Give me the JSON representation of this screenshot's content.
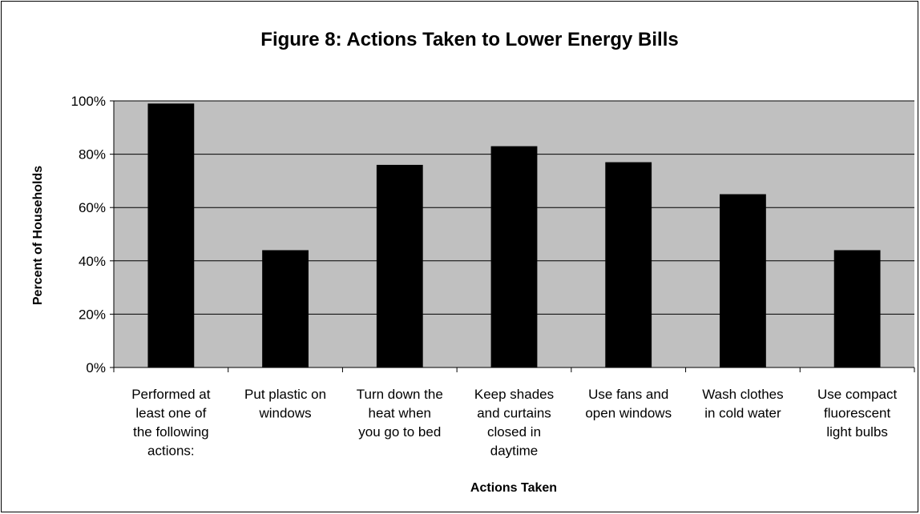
{
  "chart_data": {
    "type": "bar",
    "title": "Figure 8: Actions Taken to Lower Energy Bills",
    "xlabel": "Actions Taken",
    "ylabel": "Percent of Households",
    "ylim": [
      0,
      100
    ],
    "yticks": [
      "0%",
      "20%",
      "40%",
      "60%",
      "80%",
      "100%"
    ],
    "ytick_values": [
      0,
      20,
      40,
      60,
      80,
      100
    ],
    "grid": true,
    "legend": "none",
    "categories": [
      [
        "Performed at",
        "least one of",
        "the following",
        "actions:"
      ],
      [
        "Put plastic on",
        "windows"
      ],
      [
        "Turn down the",
        "heat when",
        "you go to bed"
      ],
      [
        "Keep shades",
        "and curtains",
        "closed in",
        "daytime"
      ],
      [
        "Use fans and",
        "open windows"
      ],
      [
        "Wash clothes",
        "in cold water"
      ],
      [
        "Use compact",
        "fluorescent",
        "light bulbs"
      ]
    ],
    "values": [
      99,
      44,
      76,
      83,
      77,
      65,
      44
    ],
    "colors": {
      "plot_bg": "#c0c0c0",
      "bar": "#000000",
      "grid": "#000000"
    }
  }
}
